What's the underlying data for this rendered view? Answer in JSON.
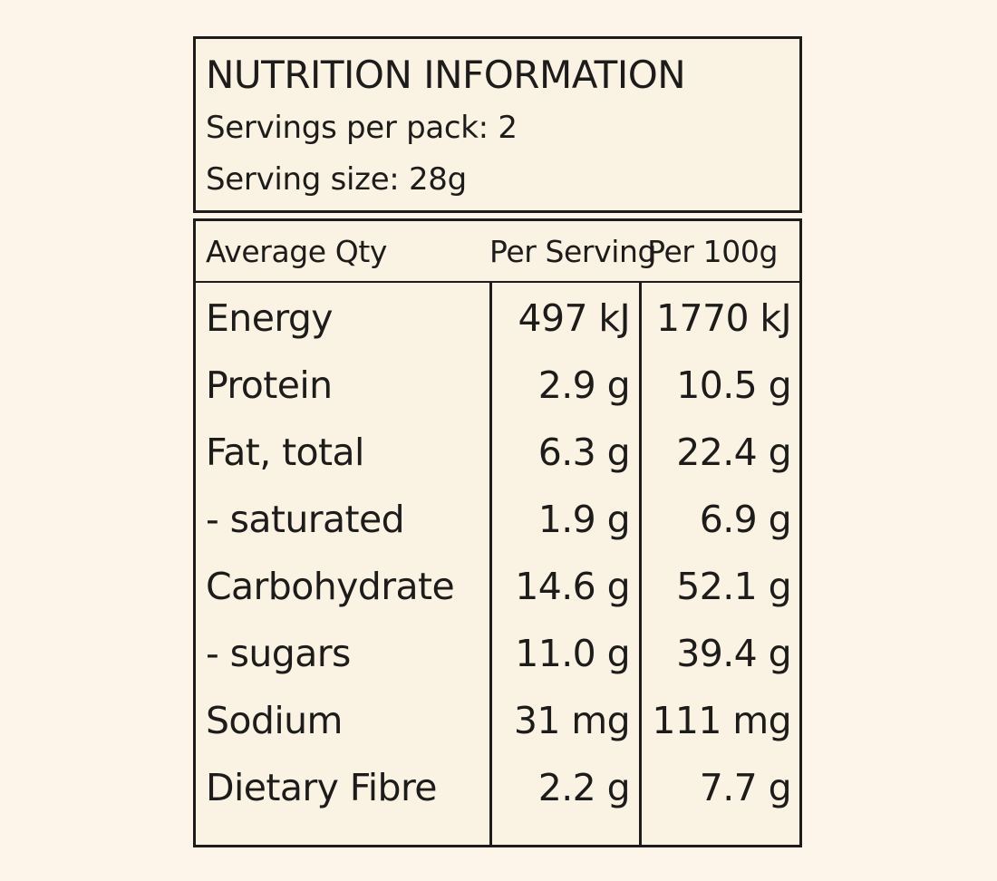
{
  "panel": {
    "title": "NUTRITION INFORMATION",
    "servings_per_pack": "Servings per pack: 2",
    "serving_size": "Serving size: 28g",
    "columns": [
      "Average Qty",
      "Per Serving",
      "Per 100g"
    ],
    "rows": [
      {
        "nutrient": "Energy",
        "per_serving": "497 kJ",
        "per_100g": "1770 kJ"
      },
      {
        "nutrient": "Protein",
        "per_serving": "2.9 g",
        "per_100g": "10.5 g"
      },
      {
        "nutrient": "Fat, total",
        "per_serving": "6.3 g",
        "per_100g": "22.4 g"
      },
      {
        "nutrient": "- saturated",
        "per_serving": "1.9 g",
        "per_100g": "6.9 g"
      },
      {
        "nutrient": "Carbohydrate",
        "per_serving": "14.6 g",
        "per_100g": "52.1 g"
      },
      {
        "nutrient": "- sugars",
        "per_serving": "11.0 g",
        "per_100g": "39.4 g"
      },
      {
        "nutrient": "Sodium",
        "per_serving": "31 mg",
        "per_100g": "111 mg"
      },
      {
        "nutrient": "Dietary Fibre",
        "per_serving": "2.2 g",
        "per_100g": "7.7 g"
      }
    ]
  },
  "colors": {
    "page_background": "#fdf5e9",
    "panel_background": "#faf3e3",
    "border": "#1d1c1a",
    "text": "#1d1c1a"
  }
}
